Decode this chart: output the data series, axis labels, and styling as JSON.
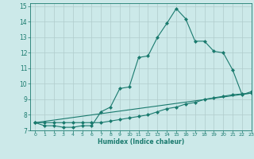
{
  "xlabel": "Humidex (Indice chaleur)",
  "xlim": [
    -0.5,
    23
  ],
  "ylim": [
    7,
    15.2
  ],
  "xticks": [
    0,
    1,
    2,
    3,
    4,
    5,
    6,
    7,
    8,
    9,
    10,
    11,
    12,
    13,
    14,
    15,
    16,
    17,
    18,
    19,
    20,
    21,
    22,
    23
  ],
  "yticks": [
    7,
    8,
    9,
    10,
    11,
    12,
    13,
    14,
    15
  ],
  "bg_color": "#cce9e9",
  "line_color": "#1a7a6e",
  "grid_color": "#b0cccc",
  "line1_x": [
    0,
    1,
    2,
    3,
    4,
    5,
    6,
    7,
    8,
    9,
    10,
    11,
    12,
    13,
    14,
    15,
    16,
    17,
    18,
    19,
    20,
    21,
    22,
    23
  ],
  "line1_y": [
    7.5,
    7.3,
    7.3,
    7.2,
    7.2,
    7.3,
    7.3,
    8.2,
    8.5,
    9.7,
    9.8,
    11.7,
    11.8,
    13.0,
    13.9,
    14.85,
    14.2,
    12.75,
    12.75,
    12.1,
    12.0,
    10.9,
    9.3,
    9.5
  ],
  "line2_x": [
    0,
    1,
    2,
    3,
    4,
    5,
    6,
    7,
    8,
    9,
    10,
    11,
    12,
    13,
    14,
    15,
    16,
    17,
    18,
    19,
    20,
    21,
    22,
    23
  ],
  "line2_y": [
    7.5,
    7.5,
    7.5,
    7.5,
    7.5,
    7.5,
    7.5,
    7.5,
    7.6,
    7.7,
    7.8,
    7.9,
    8.0,
    8.2,
    8.4,
    8.5,
    8.7,
    8.8,
    9.0,
    9.1,
    9.2,
    9.3,
    9.35,
    9.4
  ],
  "line3_x": [
    0,
    23
  ],
  "line3_y": [
    7.5,
    9.4
  ]
}
